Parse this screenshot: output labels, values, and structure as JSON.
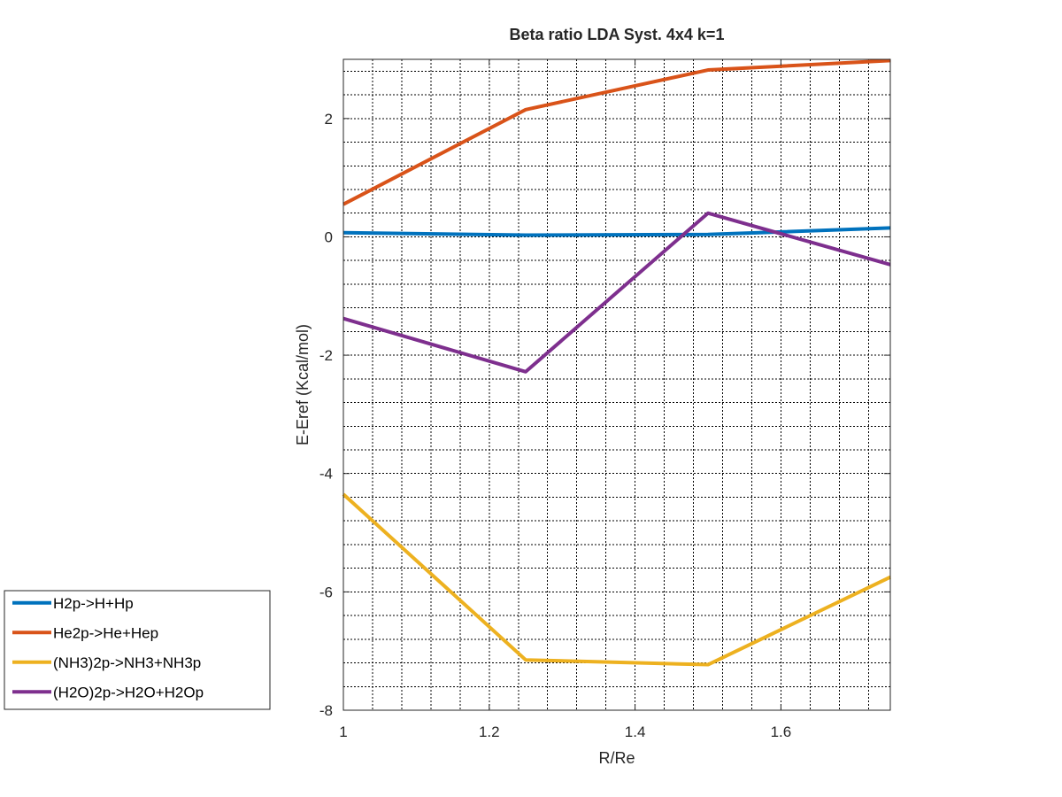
{
  "chart_data": {
    "type": "line",
    "title": "Beta ratio LDA  Syst. 4x4 k=1",
    "xlabel": "R/Re",
    "ylabel": "E-Eref (Kcal/mol)",
    "xlim": [
      1,
      1.75
    ],
    "ylim": [
      -8,
      3
    ],
    "xticks": [
      1,
      1.2,
      1.4,
      1.6
    ],
    "xtick_labels": [
      "1",
      "1.2",
      "1.4",
      "1.6"
    ],
    "yticks": [
      -8,
      -6,
      -4,
      -2,
      0,
      2
    ],
    "ytick_labels": [
      "-8",
      "-6",
      "-4",
      "-2",
      "0",
      "2"
    ],
    "x_minor_step": 0.04,
    "y_minor_step": 0.4,
    "grid": true,
    "legend_position": "outside-bottom-left",
    "x": [
      1,
      1.25,
      1.5,
      1.75
    ],
    "series": [
      {
        "name": "H2p->H+Hp",
        "color": "#0072bd",
        "values": [
          0.07,
          0.03,
          0.04,
          0.15
        ]
      },
      {
        "name": "He2p->He+Hep",
        "color": "#d95319",
        "values": [
          0.55,
          2.15,
          2.82,
          2.98
        ]
      },
      {
        "name": "(NH3)2p->NH3+NH3p",
        "color": "#edb120",
        "values": [
          -4.35,
          -7.15,
          -7.23,
          -5.75
        ]
      },
      {
        "name": "(H2O)2p->H2O+H2Op",
        "color": "#7e2f8e",
        "values": [
          -1.38,
          -2.28,
          0.4,
          -0.47
        ]
      }
    ]
  }
}
